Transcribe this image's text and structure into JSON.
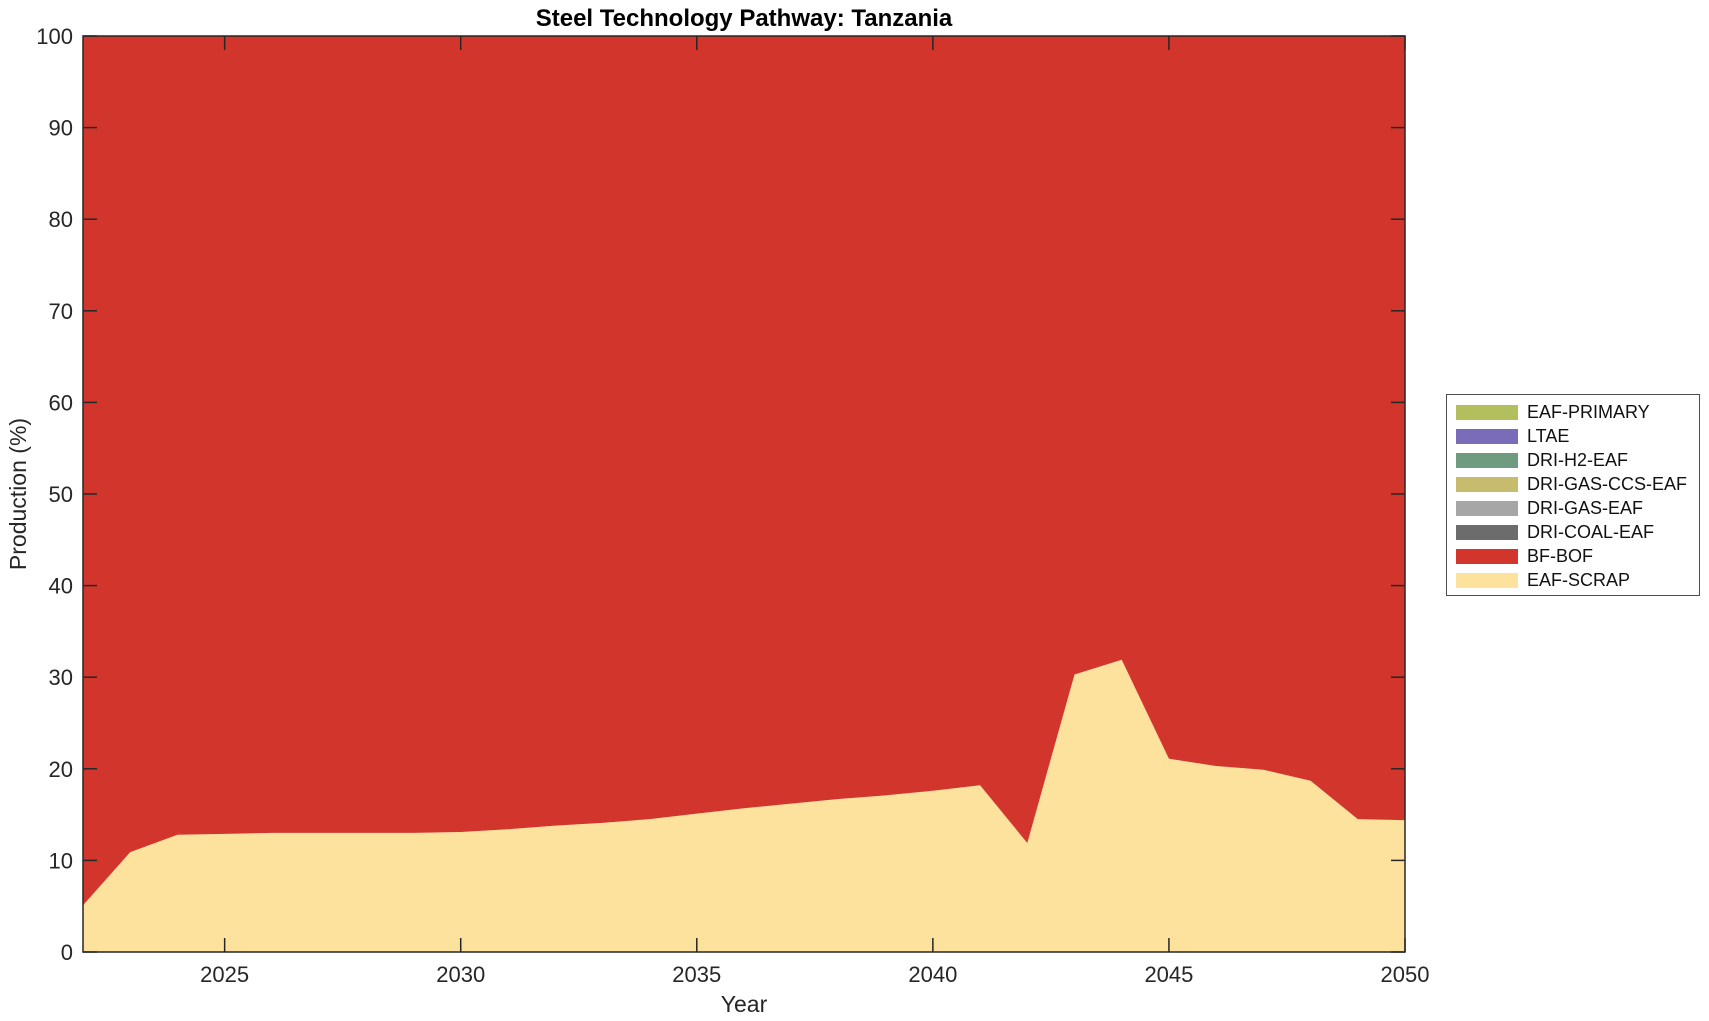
{
  "chart_data": {
    "type": "area",
    "stacked": true,
    "title": "Steel Technology Pathway: Tanzania",
    "xlabel": "Year",
    "ylabel": "Production (%)",
    "xlim": [
      2022,
      2050
    ],
    "ylim": [
      0,
      100
    ],
    "xticks": [
      2025,
      2030,
      2035,
      2040,
      2045,
      2050
    ],
    "yticks": [
      0,
      10,
      20,
      30,
      40,
      50,
      60,
      70,
      80,
      90,
      100
    ],
    "grid": false,
    "legend_position": "right-outside",
    "axis_color": "#262626",
    "x": [
      2022,
      2023,
      2024,
      2025,
      2026,
      2027,
      2028,
      2029,
      2030,
      2031,
      2032,
      2033,
      2034,
      2035,
      2036,
      2037,
      2038,
      2039,
      2040,
      2041,
      2042,
      2043,
      2044,
      2045,
      2046,
      2047,
      2048,
      2049,
      2050
    ],
    "series": [
      {
        "name": "EAF-SCRAP",
        "color": "#fce29c",
        "values": [
          5.1,
          10.9,
          12.8,
          12.9,
          13.0,
          13.0,
          13.0,
          13.0,
          13.1,
          13.4,
          13.8,
          14.1,
          14.5,
          15.1,
          15.7,
          16.2,
          16.7,
          17.1,
          17.6,
          18.2,
          11.9,
          30.3,
          31.9,
          21.1,
          20.3,
          19.9,
          18.7,
          14.5,
          14.4
        ]
      },
      {
        "name": "BF-BOF",
        "color": "#d2352b",
        "values": [
          94.9,
          89.1,
          87.2,
          87.1,
          87.0,
          87.0,
          87.0,
          87.0,
          86.9,
          86.6,
          86.2,
          85.9,
          85.5,
          84.9,
          84.3,
          83.8,
          83.3,
          82.9,
          82.4,
          81.8,
          88.1,
          69.7,
          68.1,
          78.9,
          79.7,
          80.1,
          81.3,
          85.5,
          85.6
        ]
      },
      {
        "name": "DRI-COAL-EAF",
        "color": "#6c6c6c",
        "values": [
          0,
          0,
          0,
          0,
          0,
          0,
          0,
          0,
          0,
          0,
          0,
          0,
          0,
          0,
          0,
          0,
          0,
          0,
          0,
          0,
          0,
          0,
          0,
          0,
          0,
          0,
          0,
          0,
          0
        ]
      },
      {
        "name": "DRI-GAS-EAF",
        "color": "#a6a6a6",
        "values": [
          0,
          0,
          0,
          0,
          0,
          0,
          0,
          0,
          0,
          0,
          0,
          0,
          0,
          0,
          0,
          0,
          0,
          0,
          0,
          0,
          0,
          0,
          0,
          0,
          0,
          0,
          0,
          0,
          0
        ]
      },
      {
        "name": "DRI-GAS-CCS-EAF",
        "color": "#c7bb6e",
        "values": [
          0,
          0,
          0,
          0,
          0,
          0,
          0,
          0,
          0,
          0,
          0,
          0,
          0,
          0,
          0,
          0,
          0,
          0,
          0,
          0,
          0,
          0,
          0,
          0,
          0,
          0,
          0,
          0,
          0
        ]
      },
      {
        "name": "DRI-H2-EAF",
        "color": "#6f9c80",
        "values": [
          0,
          0,
          0,
          0,
          0,
          0,
          0,
          0,
          0,
          0,
          0,
          0,
          0,
          0,
          0,
          0,
          0,
          0,
          0,
          0,
          0,
          0,
          0,
          0,
          0,
          0,
          0,
          0,
          0
        ]
      },
      {
        "name": "LTAE",
        "color": "#7b6cb9",
        "values": [
          0,
          0,
          0,
          0,
          0,
          0,
          0,
          0,
          0,
          0,
          0,
          0,
          0,
          0,
          0,
          0,
          0,
          0,
          0,
          0,
          0,
          0,
          0,
          0,
          0,
          0,
          0,
          0,
          0
        ]
      },
      {
        "name": "EAF-PRIMARY",
        "color": "#b3bf5c",
        "values": [
          0,
          0,
          0,
          0,
          0,
          0,
          0,
          0,
          0,
          0,
          0,
          0,
          0,
          0,
          0,
          0,
          0,
          0,
          0,
          0,
          0,
          0,
          0,
          0,
          0,
          0,
          0,
          0,
          0
        ]
      }
    ],
    "legend_order_top_to_bottom": [
      "EAF-PRIMARY",
      "LTAE",
      "DRI-H2-EAF",
      "DRI-GAS-CCS-EAF",
      "DRI-GAS-EAF",
      "DRI-COAL-EAF",
      "BF-BOF",
      "EAF-SCRAP"
    ]
  }
}
